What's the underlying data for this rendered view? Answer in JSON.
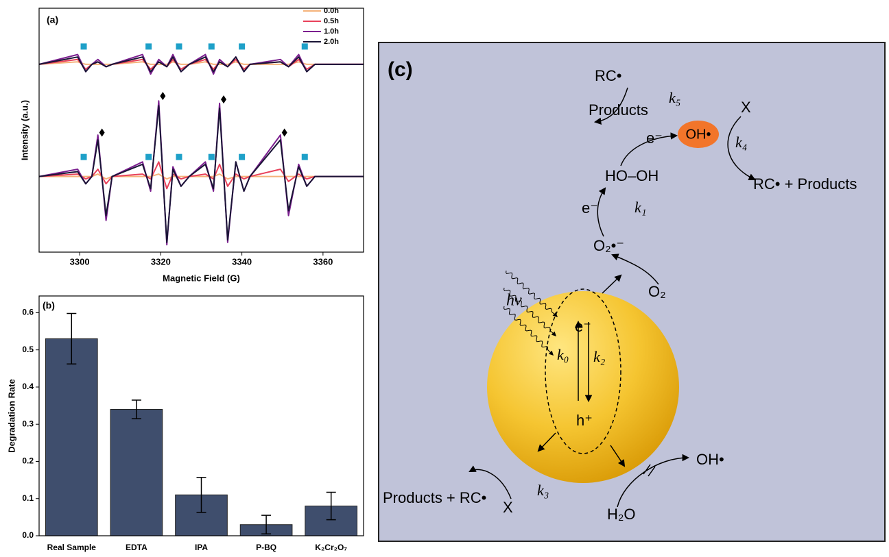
{
  "chart_data": [
    {
      "type": "line",
      "title": "(a)",
      "xlabel": "Magnetic Field (G)",
      "ylabel": "Intensity (a.u.)",
      "xlim": [
        3290,
        3370
      ],
      "xticks": [
        3300,
        3320,
        3340,
        3360
      ],
      "ylim": [
        0,
        100
      ],
      "legend": "upper right",
      "x": [
        3290,
        3299.5,
        3301.5,
        3303,
        3304.5,
        3306.5,
        3308,
        3315.5,
        3317.5,
        3319.5,
        3321.5,
        3323,
        3325,
        3327,
        3331,
        3333,
        3334.5,
        3336.5,
        3338.5,
        3340.5,
        3342,
        3349.5,
        3351.5,
        3354,
        3356,
        3358,
        3370
      ],
      "series": [
        {
          "name": "0.0h",
          "color": "#f5b27a",
          "values": [
            31,
            31,
            31,
            31,
            32,
            30,
            31,
            31,
            31,
            32,
            30,
            31,
            31,
            31,
            31,
            31,
            32,
            30,
            31,
            31,
            31,
            31,
            31,
            31,
            31,
            31,
            31
          ],
          "upper_values": [
            77,
            78,
            77,
            77,
            77,
            77,
            77,
            78,
            77,
            77,
            77,
            78,
            77,
            77,
            78,
            77,
            77,
            77,
            78,
            77,
            77,
            77,
            77,
            78,
            77,
            77,
            77
          ]
        },
        {
          "name": "0.5h",
          "color": "#e8415a",
          "values": [
            31,
            32,
            30,
            31,
            34,
            28,
            31,
            32,
            30,
            37,
            26,
            32,
            30,
            31,
            32,
            30,
            36,
            27,
            32,
            30,
            31,
            34,
            29,
            32,
            30,
            31,
            31
          ],
          "upper_values": [
            77,
            79,
            75,
            77,
            78,
            76,
            77,
            79,
            75,
            78,
            76,
            79,
            75,
            77,
            79,
            75,
            78,
            76,
            79,
            75,
            77,
            78,
            76,
            79,
            75,
            77,
            77
          ]
        },
        {
          "name": "1.0h",
          "color": "#7b1f8f",
          "values": [
            31,
            34,
            28,
            31,
            48,
            13,
            31,
            37,
            25,
            62,
            3,
            35,
            27,
            31,
            37,
            25,
            61,
            4,
            37,
            25,
            31,
            48,
            15,
            36,
            27,
            31,
            31
          ],
          "upper_values": [
            77,
            81,
            74,
            77,
            79,
            76,
            77,
            81,
            73,
            79,
            76,
            81,
            74,
            77,
            81,
            73,
            79,
            76,
            80,
            74,
            77,
            79,
            76,
            81,
            74,
            77,
            77
          ]
        },
        {
          "name": "2.0h",
          "color": "#1a1436",
          "values": [
            31,
            33,
            28,
            31,
            46,
            15,
            31,
            36,
            26,
            60,
            4,
            34,
            27,
            31,
            36,
            26,
            59,
            5,
            37,
            25,
            31,
            46,
            17,
            35,
            27,
            31,
            31
          ],
          "upper_values": [
            77,
            80,
            74,
            77,
            78,
            76,
            77,
            80,
            74,
            78,
            76,
            80,
            74,
            77,
            80,
            74,
            78,
            76,
            80,
            74,
            77,
            78,
            76,
            80,
            74,
            77,
            77
          ]
        }
      ],
      "marker_colors": {
        "square": "#1ea0c8",
        "diamond": "#000000"
      },
      "markers": [
        {
          "shape": "square",
          "x": 3301,
          "y": 84.3
        },
        {
          "shape": "square",
          "x": 3317,
          "y": 84.3
        },
        {
          "shape": "square",
          "x": 3324.5,
          "y": 84.3
        },
        {
          "shape": "square",
          "x": 3332.5,
          "y": 84.3
        },
        {
          "shape": "square",
          "x": 3340,
          "y": 84.3
        },
        {
          "shape": "square",
          "x": 3355.5,
          "y": 84.3
        },
        {
          "shape": "square",
          "x": 3301,
          "y": 39
        },
        {
          "shape": "square",
          "x": 3317,
          "y": 39
        },
        {
          "shape": "square",
          "x": 3324.5,
          "y": 39
        },
        {
          "shape": "square",
          "x": 3332.5,
          "y": 39
        },
        {
          "shape": "square",
          "x": 3340,
          "y": 39
        },
        {
          "shape": "square",
          "x": 3355.5,
          "y": 39
        },
        {
          "shape": "diamond",
          "x": 3305.5,
          "y": 49
        },
        {
          "shape": "diamond",
          "x": 3320.5,
          "y": 64
        },
        {
          "shape": "diamond",
          "x": 3335.5,
          "y": 62.6
        },
        {
          "shape": "diamond",
          "x": 3350.5,
          "y": 49
        }
      ]
    },
    {
      "type": "bar",
      "title": "(b)",
      "ylabel": "Degradation Rate",
      "categories": [
        "Real Sample",
        "EDTA",
        "IPA",
        "P-BQ",
        "K₂Cr₂O₇"
      ],
      "values": [
        0.53,
        0.34,
        0.11,
        0.03,
        0.08
      ],
      "errors": [
        0.068,
        0.025,
        0.047,
        0.025,
        0.037
      ],
      "color": "#3f4e6d",
      "ylim": [
        0,
        0.645
      ],
      "yticks": [
        {
          "value": 0,
          "label": "0.0"
        },
        0.1,
        0.2,
        0.3,
        0.4,
        0.5,
        0.6
      ]
    }
  ],
  "diagram": {
    "labels": [
      "(c)",
      "RC•",
      "Products",
      "k₅",
      "X",
      "OH•",
      "e⁻",
      "k₄",
      "HO–OH",
      "RC• + Products",
      "e⁻",
      "k₁",
      "O₂•⁻",
      "O₂",
      "hν",
      "e⁻",
      "k₀",
      "k₂",
      "h⁺",
      "OH•",
      "k₃",
      "Products + RC•",
      "X",
      "H₂O"
    ]
  }
}
